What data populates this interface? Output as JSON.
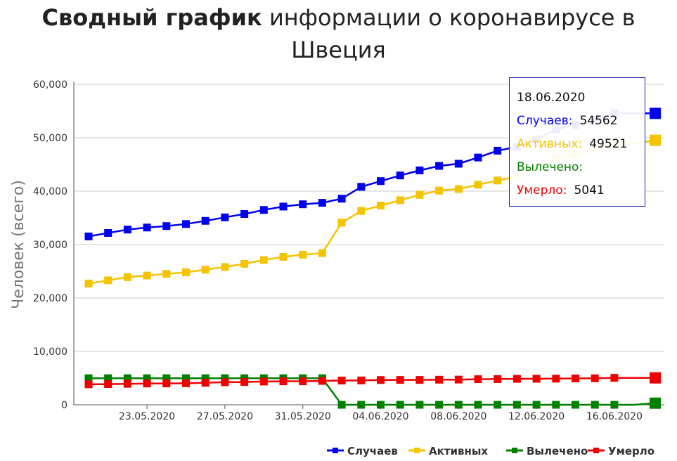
{
  "title": {
    "bold": "Сводный график",
    "rest": "информации о коронавирусе в Швеция"
  },
  "colors": {
    "cases": "#0000ee",
    "active": "#f5c400",
    "recovered": "#008000",
    "deaths": "#ee0000",
    "grid": "#cccccc",
    "axis": "#555555"
  },
  "chart_data": {
    "type": "line",
    "title": "Сводный график информации о коронавирусе в Швеция",
    "ylabel": "Человек (всего)",
    "xlabel": "",
    "ylim": [
      0,
      60000
    ],
    "yticks": [
      0,
      10000,
      20000,
      30000,
      40000,
      50000,
      60000
    ],
    "ytick_labels": [
      "0",
      "10,000",
      "20,000",
      "30,000",
      "40,000",
      "50,000",
      "60,000"
    ],
    "xtick_labels": [
      "23.05.2020",
      "27.05.2020",
      "31.05.2020",
      "04.06.2020",
      "08.06.2020",
      "12.06.2020",
      "16.06.2020"
    ],
    "xtick_indices": [
      3,
      7,
      11,
      15,
      19,
      23,
      27
    ],
    "x": [
      "20.05.2020",
      "21.05.2020",
      "22.05.2020",
      "23.05.2020",
      "24.05.2020",
      "25.05.2020",
      "26.05.2020",
      "27.05.2020",
      "28.05.2020",
      "29.05.2020",
      "30.05.2020",
      "31.05.2020",
      "01.06.2020",
      "02.06.2020",
      "03.06.2020",
      "04.06.2020",
      "05.06.2020",
      "06.06.2020",
      "07.06.2020",
      "08.06.2020",
      "09.06.2020",
      "10.06.2020",
      "11.06.2020",
      "12.06.2020",
      "13.06.2020",
      "14.06.2020",
      "15.06.2020",
      "16.06.2020",
      "17.06.2020",
      "18.06.2020"
    ],
    "series": [
      {
        "name": "Случаев",
        "key": "cases",
        "values": [
          31523,
          32172,
          32809,
          33188,
          33459,
          33843,
          34440,
          35088,
          35727,
          36476,
          37113,
          37542,
          37814,
          38589,
          40803,
          41883,
          42939,
          43887,
          44730,
          45133,
          46299,
          47573,
          48288,
          49684,
          51614,
          52383,
          53323,
          54562,
          54562,
          54562
        ]
      },
      {
        "name": "Активных",
        "key": "active",
        "values": [
          22700,
          23300,
          23900,
          24200,
          24500,
          24800,
          25300,
          25800,
          26400,
          27100,
          27700,
          28100,
          28400,
          34100,
          36300,
          37300,
          38300,
          39300,
          40100,
          40400,
          41200,
          42000,
          42700,
          44300,
          46200,
          47000,
          47900,
          48900,
          48900,
          49521
        ]
      },
      {
        "name": "Вылечено",
        "key": "recovered",
        "values": [
          4971,
          4971,
          4971,
          4971,
          4971,
          4971,
          4971,
          4971,
          4971,
          4971,
          4971,
          4971,
          4971,
          0,
          0,
          0,
          0,
          0,
          0,
          0,
          0,
          0,
          0,
          0,
          0,
          0,
          0,
          0,
          0,
          300
        ]
      },
      {
        "name": "Умерло",
        "key": "deaths",
        "values": [
          3831,
          3871,
          3925,
          3992,
          3998,
          4029,
          4125,
          4220,
          4266,
          4350,
          4395,
          4403,
          4468,
          4542,
          4562,
          4639,
          4656,
          4659,
          4694,
          4717,
          4795,
          4814,
          4854,
          4874,
          4891,
          4939,
          4954,
          5041,
          5041,
          5041
        ]
      }
    ],
    "legend_position": "bottom-right",
    "grid": true
  },
  "tooltip": {
    "date": "18.06.2020",
    "rows": [
      {
        "label": "Случаев:",
        "value": "54562",
        "color": "#0000ee"
      },
      {
        "label": "Активных:",
        "value": "49521",
        "color": "#f5c400"
      },
      {
        "label": "Вылечено:",
        "value": "",
        "color": "#008000"
      },
      {
        "label": "Умерло:",
        "value": "5041",
        "color": "#ee0000"
      }
    ]
  },
  "legend": [
    {
      "label": "Случаев",
      "key": "cases"
    },
    {
      "label": "Активных",
      "key": "active"
    },
    {
      "label": "Вылечено",
      "key": "recovered"
    },
    {
      "label": "Умерло",
      "key": "deaths"
    }
  ]
}
